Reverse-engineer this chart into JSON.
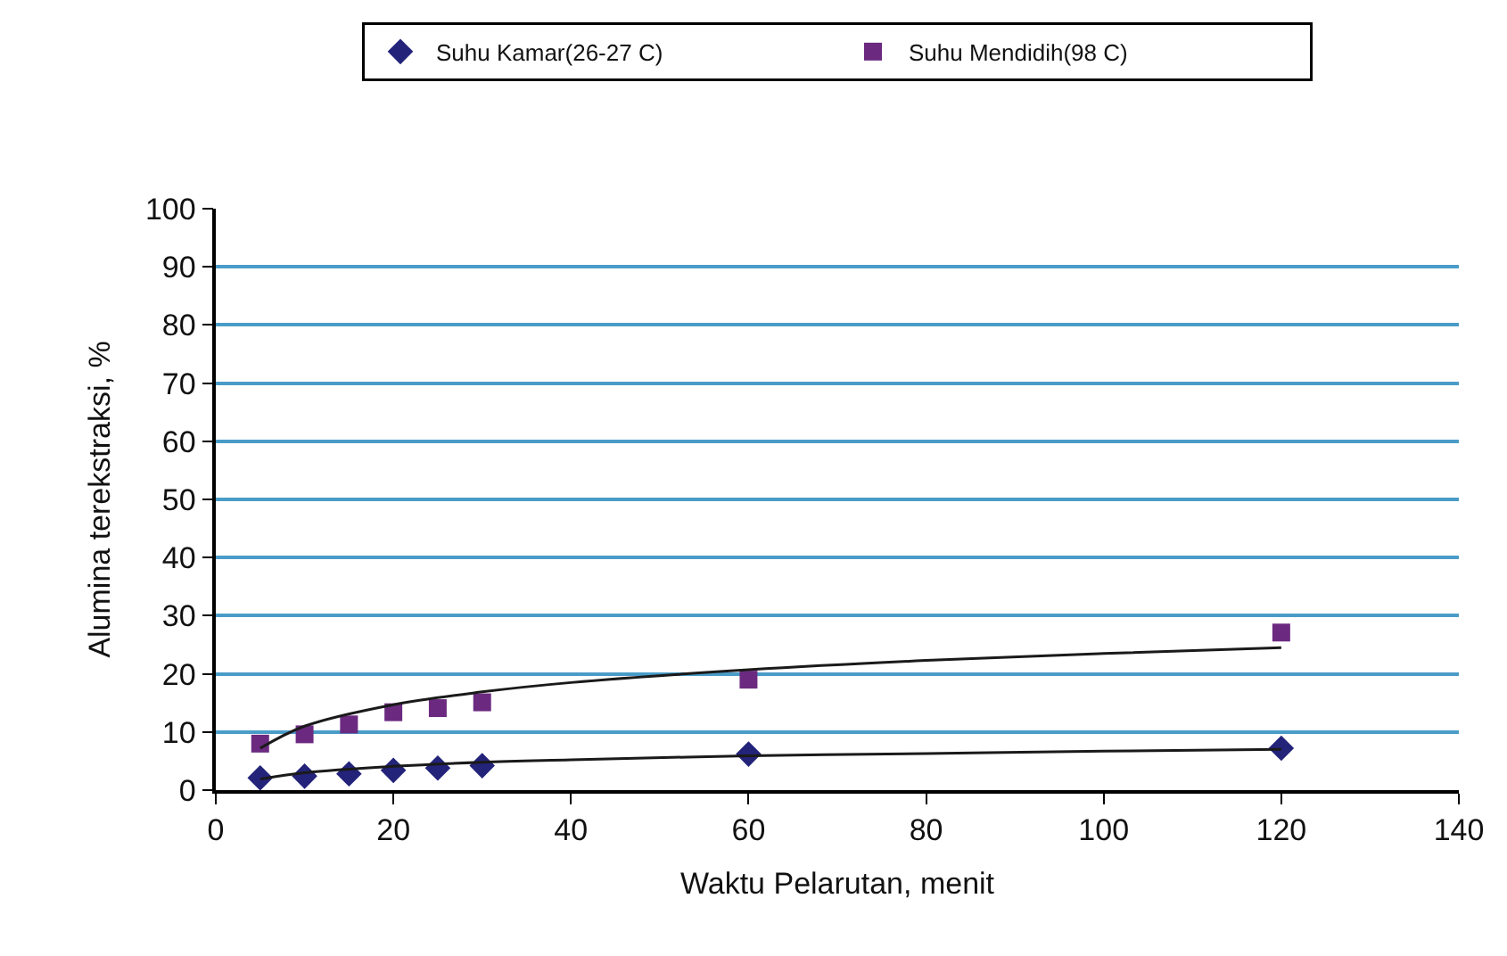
{
  "chart_data": {
    "type": "scatter",
    "xlabel": "Waktu Pelarutan, menit",
    "ylabel": "Alumina terekstraksi, %",
    "xlim": [
      0,
      140
    ],
    "xticks": [
      0,
      20,
      40,
      60,
      80,
      100,
      120,
      140
    ],
    "ylim": [
      0,
      100
    ],
    "yticks": [
      0,
      10,
      20,
      30,
      40,
      50,
      60,
      70,
      80,
      90,
      100
    ],
    "grid": "y",
    "legend": "top",
    "x": [
      5,
      10,
      15,
      20,
      25,
      30,
      60,
      120
    ],
    "series": [
      {
        "name": "Suhu Kamar(26-27 C)",
        "color": "#23237a",
        "marker": "diamond",
        "values": [
          2.1,
          2.4,
          2.8,
          3.4,
          3.8,
          4.2,
          6.2,
          7.2
        ]
      },
      {
        "name": "Suhu Mendidih(98 C)",
        "color": "#6b2a80",
        "marker": "square",
        "values": [
          8.0,
          9.6,
          11.3,
          13.4,
          14.1,
          15.1,
          19.0,
          27.1
        ]
      },
      {
        "type": "line",
        "color": "#1a1a1a",
        "marker": "none",
        "x": [
          5,
          10,
          20,
          30,
          40,
          60,
          80,
          100,
          120
        ],
        "values": [
          1.9,
          3.0,
          4.1,
          4.8,
          5.2,
          5.9,
          6.3,
          6.7,
          7.0
        ]
      },
      {
        "type": "line",
        "color": "#1a1a1a",
        "marker": "none",
        "x": [
          5,
          10,
          20,
          30,
          40,
          60,
          80,
          100,
          120
        ],
        "values": [
          7.2,
          11.0,
          14.7,
          16.9,
          18.5,
          20.7,
          22.3,
          23.5,
          24.5
        ]
      }
    ]
  }
}
